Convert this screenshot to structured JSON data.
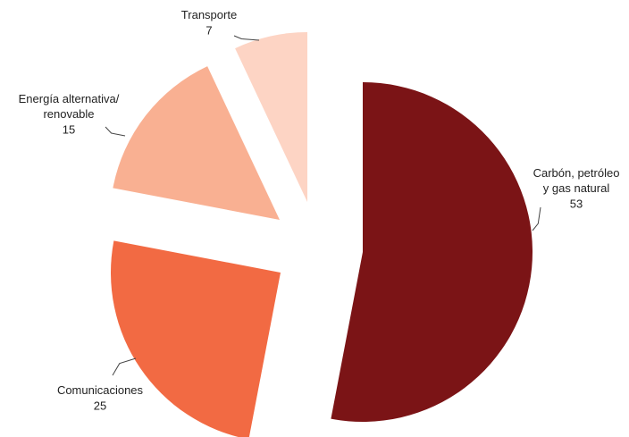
{
  "chart_data": {
    "type": "pie",
    "categories": [
      "Carbón, petróleo\ny gas natural",
      "Comunicaciones",
      "Energía alternativa/\nrenovable",
      "Transporte"
    ],
    "values": [
      53,
      25,
      15,
      7
    ],
    "colors": [
      "#7b1416",
      "#f26a43",
      "#f9b092",
      "#fdd4c4"
    ],
    "exploded": true
  }
}
